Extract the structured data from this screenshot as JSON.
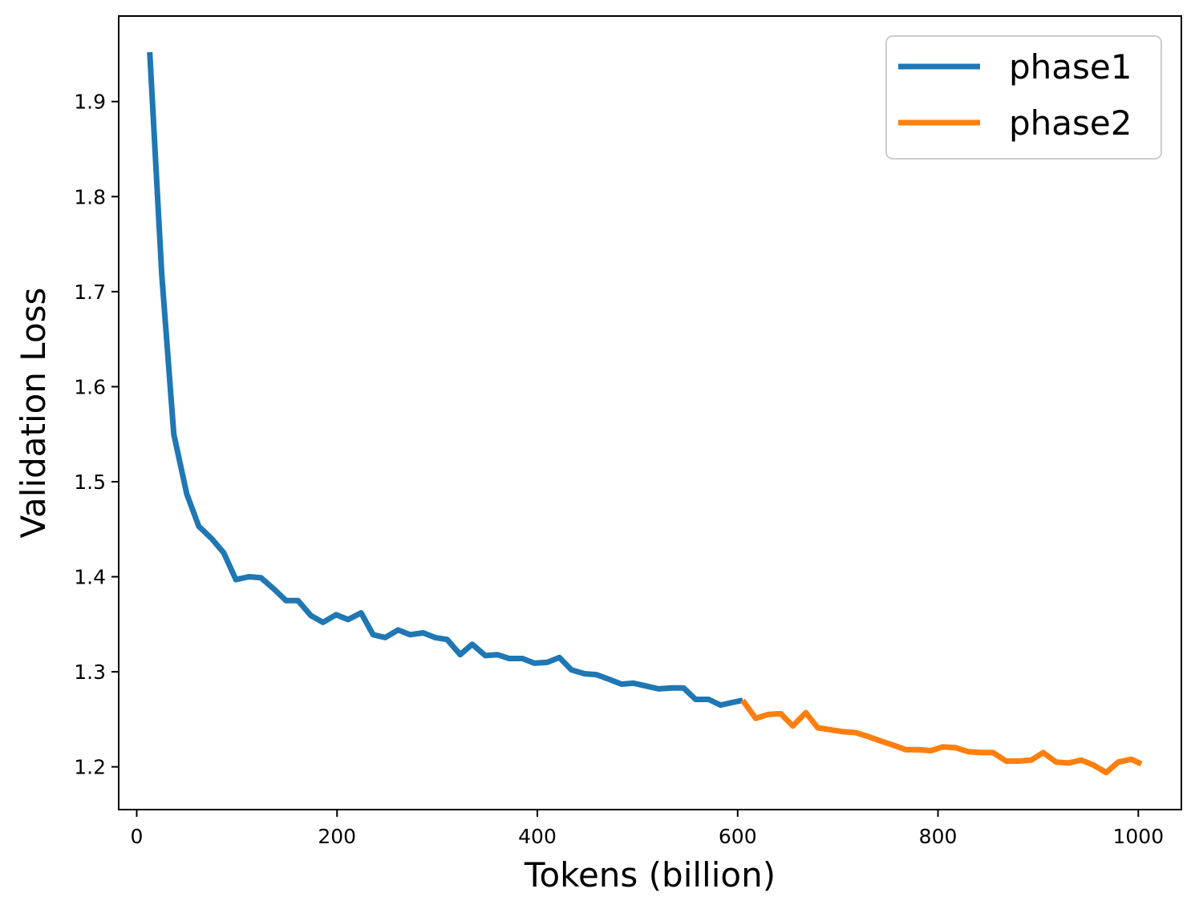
{
  "chart_data": {
    "type": "line",
    "title": "",
    "xlabel": "Tokens (billion)",
    "ylabel": "Validation Loss",
    "xlim": [
      -18,
      1043
    ],
    "ylim": [
      1.155,
      1.99
    ],
    "xticks": [
      0,
      200,
      400,
      600,
      800,
      1000
    ],
    "xtick_labels": [
      "0",
      "200",
      "400",
      "600",
      "800",
      "1000"
    ],
    "yticks": [
      1.2,
      1.3,
      1.4,
      1.5,
      1.6,
      1.7,
      1.8,
      1.9
    ],
    "ytick_labels": [
      "1.2",
      "1.3",
      "1.4",
      "1.5",
      "1.6",
      "1.7",
      "1.8",
      "1.9"
    ],
    "grid": false,
    "legend_position": "top-right",
    "series": [
      {
        "name": "phase1",
        "color": "#1f77b4",
        "x": [
          13,
          25,
          37,
          50,
          62,
          75,
          87,
          99,
          112,
          124,
          137,
          149,
          161,
          174,
          186,
          199,
          211,
          224,
          236,
          248,
          261,
          273,
          286,
          298,
          310,
          323,
          335,
          348,
          360,
          372,
          385,
          397,
          410,
          422,
          434,
          447,
          459,
          472,
          484,
          496,
          509,
          521,
          534,
          546,
          558,
          571,
          583,
          596,
          605
        ],
        "y": [
          1.952,
          1.718,
          1.55,
          1.487,
          1.453,
          1.44,
          1.425,
          1.397,
          1.4,
          1.399,
          1.387,
          1.375,
          1.375,
          1.359,
          1.352,
          1.36,
          1.355,
          1.362,
          1.339,
          1.336,
          1.344,
          1.339,
          1.341,
          1.336,
          1.334,
          1.318,
          1.329,
          1.317,
          1.318,
          1.314,
          1.314,
          1.309,
          1.31,
          1.315,
          1.302,
          1.298,
          1.297,
          1.292,
          1.287,
          1.288,
          1.285,
          1.282,
          1.283,
          1.283,
          1.271,
          1.271,
          1.265,
          1.268,
          1.27
        ]
      },
      {
        "name": "phase2",
        "color": "#ff7f0e",
        "x": [
          605,
          618,
          630,
          643,
          655,
          668,
          680,
          693,
          705,
          718,
          730,
          743,
          755,
          768,
          780,
          793,
          805,
          818,
          830,
          843,
          855,
          868,
          880,
          893,
          905,
          918,
          930,
          943,
          955,
          968,
          980,
          993,
          1003
        ],
        "y": [
          1.27,
          1.251,
          1.255,
          1.256,
          1.243,
          1.257,
          1.241,
          1.239,
          1.237,
          1.236,
          1.232,
          1.227,
          1.223,
          1.218,
          1.218,
          1.217,
          1.221,
          1.22,
          1.216,
          1.215,
          1.215,
          1.206,
          1.206,
          1.207,
          1.215,
          1.205,
          1.204,
          1.207,
          1.202,
          1.194,
          1.205,
          1.208,
          1.203
        ]
      }
    ]
  }
}
